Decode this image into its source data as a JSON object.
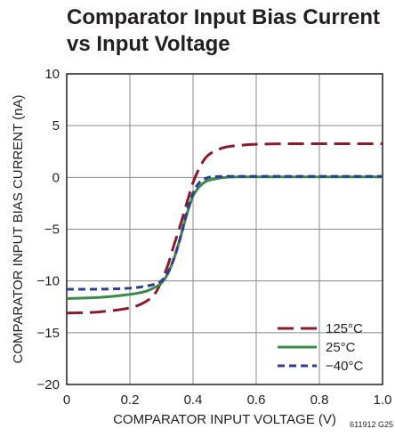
{
  "chart_data": {
    "type": "line",
    "title": "Comparator Input Bias Current vs Input Voltage",
    "title_lines": [
      "Comparator Input Bias Current",
      "vs Input Voltage"
    ],
    "xlabel": "COMPARATOR INPUT VOLTAGE (V)",
    "ylabel": "COMPARATOR INPUT BIAS CURRENT (nA)",
    "xlim": [
      0,
      1.0
    ],
    "ylim": [
      -20,
      10
    ],
    "x_ticks": [
      "0",
      "0.2",
      "0.4",
      "0.6",
      "0.8",
      "1.0"
    ],
    "y_ticks": [
      "10",
      "5",
      "0",
      "−5",
      "−10",
      "−15",
      "−20"
    ],
    "grid": true,
    "legend_position": "bottom-right",
    "figure_id": "611912 G25",
    "series": [
      {
        "name": "125°C",
        "color": "#8b1a2b",
        "dash": "long-dash",
        "x": [
          0,
          0.1,
          0.2,
          0.25,
          0.28,
          0.3,
          0.32,
          0.34,
          0.36,
          0.38,
          0.4,
          0.42,
          0.44,
          0.46,
          0.5,
          0.55,
          0.6,
          0.7,
          0.8,
          0.9,
          1.0
        ],
        "y": [
          -13.1,
          -13.0,
          -12.6,
          -12.0,
          -11.2,
          -10.0,
          -8.5,
          -6.5,
          -4.6,
          -2.5,
          -0.5,
          0.9,
          1.9,
          2.4,
          2.9,
          3.1,
          3.2,
          3.25,
          3.25,
          3.25,
          3.25
        ]
      },
      {
        "name": "25°C",
        "color": "#3a8a4a",
        "dash": "solid",
        "x": [
          0,
          0.1,
          0.2,
          0.25,
          0.28,
          0.3,
          0.32,
          0.34,
          0.36,
          0.38,
          0.4,
          0.42,
          0.44,
          0.46,
          0.5,
          0.55,
          0.6,
          0.7,
          0.8,
          0.9,
          1.0
        ],
        "y": [
          -11.7,
          -11.6,
          -11.3,
          -11.0,
          -10.6,
          -10.2,
          -9.3,
          -7.8,
          -5.8,
          -3.6,
          -1.8,
          -0.9,
          -0.4,
          -0.2,
          0.0,
          0.05,
          0.05,
          0.05,
          0.05,
          0.05,
          0.05
        ]
      },
      {
        "name": "−40°C",
        "color": "#2e3d8f",
        "dash": "short-dash",
        "x": [
          0,
          0.1,
          0.2,
          0.25,
          0.28,
          0.3,
          0.32,
          0.34,
          0.36,
          0.38,
          0.4,
          0.42,
          0.44,
          0.46,
          0.5,
          0.55,
          0.6,
          0.7,
          0.8,
          0.9,
          1.0
        ],
        "y": [
          -10.8,
          -10.8,
          -10.7,
          -10.5,
          -10.3,
          -10.0,
          -9.2,
          -7.8,
          -5.8,
          -3.4,
          -1.5,
          -0.5,
          -0.1,
          0.05,
          0.1,
          0.1,
          0.1,
          0.1,
          0.1,
          0.1,
          0.1
        ]
      }
    ]
  }
}
